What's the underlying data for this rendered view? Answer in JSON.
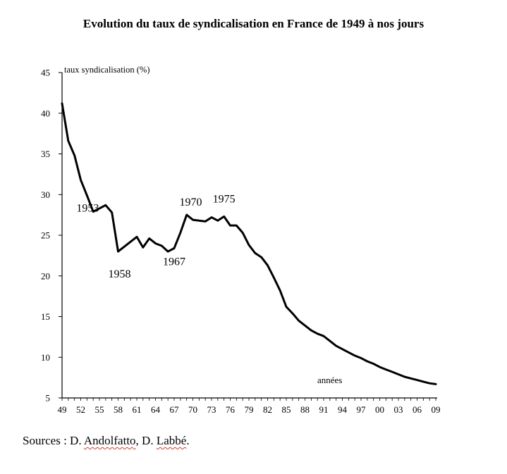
{
  "chart_data": {
    "type": "line",
    "title": "Evolution du taux de syndicalisation en France de 1949 à nos jours",
    "ylabel": "taux syndicalisation  (%)",
    "xlabel": "années",
    "ylim": [
      5,
      45
    ],
    "yticks": [
      5,
      10,
      15,
      20,
      25,
      30,
      35,
      40,
      45
    ],
    "xlim": [
      1949,
      2009
    ],
    "xtick_labels": [
      "49",
      "52",
      "55",
      "58",
      "61",
      "64",
      "67",
      "70",
      "73",
      "76",
      "79",
      "82",
      "85",
      "88",
      "91",
      "94",
      "97",
      "00",
      "03",
      "06",
      "09"
    ],
    "x": [
      1949,
      1950,
      1951,
      1952,
      1953,
      1954,
      1955,
      1956,
      1957,
      1958,
      1959,
      1960,
      1961,
      1962,
      1963,
      1964,
      1965,
      1966,
      1967,
      1968,
      1969,
      1970,
      1971,
      1972,
      1973,
      1974,
      1975,
      1976,
      1977,
      1978,
      1979,
      1980,
      1981,
      1982,
      1983,
      1984,
      1985,
      1986,
      1987,
      1988,
      1989,
      1990,
      1991,
      1992,
      1993,
      1994,
      1995,
      1996,
      1997,
      1998,
      1999,
      2000,
      2001,
      2002,
      2003,
      2004,
      2005,
      2006,
      2007,
      2008,
      2009
    ],
    "values": [
      41.2,
      36.6,
      34.8,
      31.8,
      29.9,
      27.9,
      28.3,
      28.7,
      27.8,
      23.0,
      23.6,
      24.2,
      24.8,
      23.5,
      24.6,
      24.0,
      23.7,
      23.0,
      23.4,
      25.3,
      27.5,
      26.9,
      26.8,
      26.7,
      27.2,
      26.8,
      27.3,
      26.2,
      26.2,
      25.3,
      23.8,
      22.8,
      22.3,
      21.3,
      19.8,
      18.2,
      16.2,
      15.4,
      14.5,
      13.9,
      13.3,
      12.9,
      12.6,
      12.0,
      11.4,
      11.0,
      10.6,
      10.2,
      9.9,
      9.5,
      9.2,
      8.8,
      8.5,
      8.2,
      7.9,
      7.6,
      7.4,
      7.2,
      7.0,
      6.8,
      6.7
    ],
    "annotations": [
      {
        "text": "1953",
        "x": 1953,
        "y": 29.9
      },
      {
        "text": "1958",
        "x": 1958,
        "y": 23.0
      },
      {
        "text": "1967",
        "x": 1967,
        "y": 23.4
      },
      {
        "text": "1970",
        "x": 1970,
        "y": 26.9
      },
      {
        "text": "1975",
        "x": 1975,
        "y": 27.3
      }
    ],
    "grid": false,
    "line_color": "#000000"
  },
  "sources": {
    "prefix": "Sources : D. ",
    "author1": "Andolfatto",
    "middle": ", D. ",
    "author2": "Labbé",
    "suffix": "."
  }
}
